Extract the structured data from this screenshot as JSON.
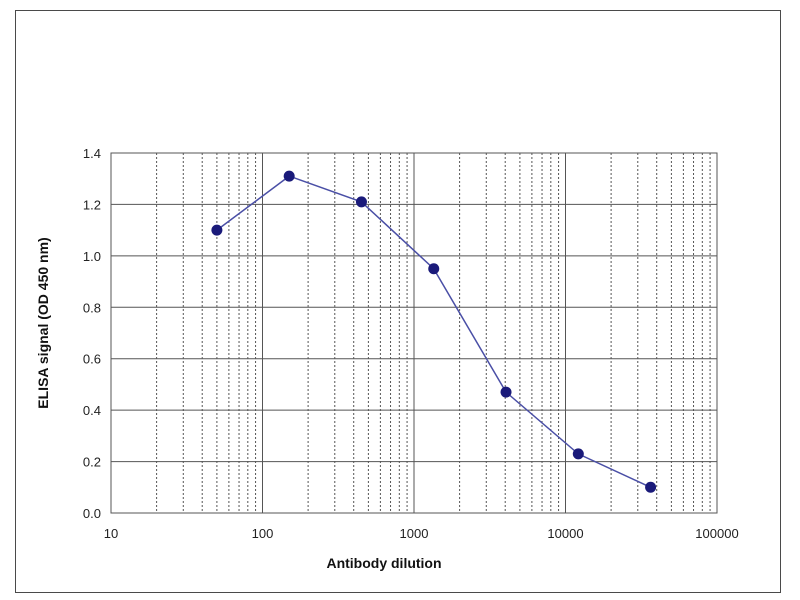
{
  "chart_data": {
    "type": "scatter",
    "title": "",
    "xlabel": "Antibody dilution",
    "ylabel": "ELISA signal (OD 450 nm)",
    "xscale": "log",
    "xlim": [
      10,
      100000
    ],
    "ylim": [
      0.0,
      1.4
    ],
    "grid": {
      "x_major": true,
      "x_minor": true,
      "y_major": true
    },
    "legend": "none",
    "x_tick_labels": [
      "10",
      "100",
      "1000",
      "10000",
      "100000"
    ],
    "y_tick_labels": [
      "0.0",
      "0.2",
      "0.4",
      "0.6",
      "0.8",
      "1.0",
      "1.2",
      "1.4"
    ],
    "series": [
      {
        "x": [
          50,
          150,
          450,
          1350,
          4050,
          12150,
          36450
        ],
        "y": [
          1.1,
          1.31,
          1.21,
          0.95,
          0.47,
          0.23,
          0.1
        ],
        "color": "#4a4fa6",
        "marker_color": "#1a1a7a",
        "style": "line-with-markers"
      }
    ]
  }
}
